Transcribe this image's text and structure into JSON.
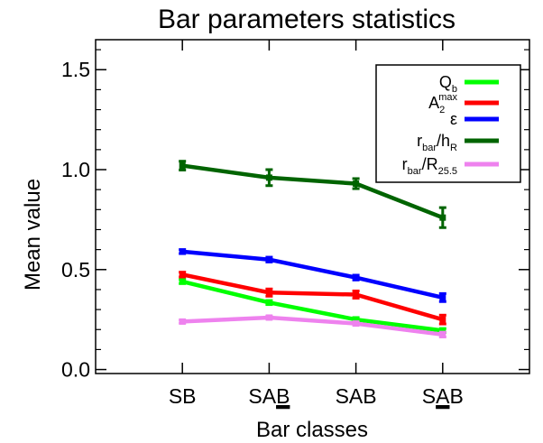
{
  "chart_data": {
    "type": "line",
    "title": "Bar parameters statistics",
    "xlabel": "Bar classes",
    "ylabel": "Mean value",
    "categories": [
      {
        "main": "SB",
        "underline": ""
      },
      {
        "main": "SA",
        "underline": "B"
      },
      {
        "main": "SAB",
        "underline": ""
      },
      {
        "main": "S",
        "underline": "A",
        "suffix": "B"
      }
    ],
    "y_ticks": [
      "0.0",
      "0.5",
      "1.0",
      "1.5"
    ],
    "ylim": [
      -0.02,
      1.65
    ],
    "xlim": [
      -1,
      4
    ],
    "x_positions": [
      0,
      1,
      2,
      3
    ],
    "grid": false,
    "legend_position": "top-right",
    "series": [
      {
        "key": "qb",
        "legend": {
          "base": "Q",
          "sub": "b",
          "sup": ""
        },
        "color": "#00ff00",
        "values": [
          0.44,
          0.335,
          0.25,
          0.195
        ],
        "errors": [
          0.01,
          0.01,
          0.01,
          0.01
        ]
      },
      {
        "key": "a2max",
        "legend": {
          "base": "A",
          "sub": "2",
          "sup": "max"
        },
        "color": "#ff0000",
        "values": [
          0.475,
          0.385,
          0.375,
          0.25
        ],
        "errors": [
          0.012,
          0.018,
          0.018,
          0.022
        ]
      },
      {
        "key": "eps",
        "legend": {
          "base": "ε",
          "sub": "",
          "sup": ""
        },
        "color": "#0000ff",
        "values": [
          0.59,
          0.55,
          0.46,
          0.36
        ],
        "errors": [
          0.01,
          0.012,
          0.012,
          0.02
        ]
      },
      {
        "key": "rbarhr",
        "legend": {
          "parts": [
            [
              "r",
              ""
            ],
            [
              "bar",
              "sub"
            ],
            [
              "/h",
              ""
            ],
            [
              "R",
              "sub"
            ]
          ]
        },
        "color": "#006400",
        "values": [
          1.02,
          0.96,
          0.93,
          0.76
        ],
        "errors": [
          0.022,
          0.04,
          0.025,
          0.05
        ]
      },
      {
        "key": "rbarr255",
        "legend": {
          "parts": [
            [
              "r",
              ""
            ],
            [
              "bar",
              "sub"
            ],
            [
              "/R",
              ""
            ],
            [
              "25.5",
              "sub"
            ]
          ]
        },
        "color": "#ee82ee",
        "values": [
          0.24,
          0.26,
          0.23,
          0.175
        ],
        "errors": [
          0.008,
          0.008,
          0.008,
          0.012
        ]
      }
    ]
  }
}
